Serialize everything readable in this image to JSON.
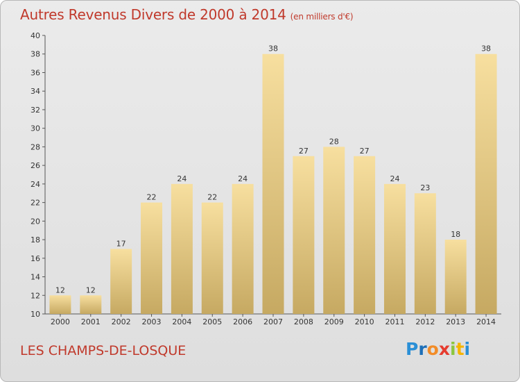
{
  "header": {
    "title": "Autres Revenus Divers de 2000 à 2014",
    "unit": "(en milliers d'€)"
  },
  "footer": {
    "commune": "LES CHAMPS-DE-LOSQUE",
    "logo": "Proxiti"
  },
  "colors": {
    "title": "#c0392b",
    "bar_light": "#f5dc9a",
    "bar_dark": "#c9ad6a"
  },
  "chart_data": {
    "type": "bar",
    "title": "Autres Revenus Divers de 2000 à 2014",
    "subtitle": "(en milliers d'€)",
    "categories": [
      "2000",
      "2001",
      "2002",
      "2003",
      "2004",
      "2005",
      "2006",
      "2007",
      "2008",
      "2009",
      "2010",
      "2011",
      "2012",
      "2013",
      "2014"
    ],
    "values": [
      12,
      12,
      17,
      22,
      24,
      22,
      24,
      38,
      27,
      28,
      27,
      24,
      23,
      18,
      38
    ],
    "ylim": [
      10,
      40
    ],
    "yticks": [
      10,
      12,
      14,
      16,
      18,
      20,
      22,
      24,
      26,
      28,
      30,
      32,
      34,
      36,
      38,
      40
    ],
    "grid": false,
    "legend": "none"
  }
}
